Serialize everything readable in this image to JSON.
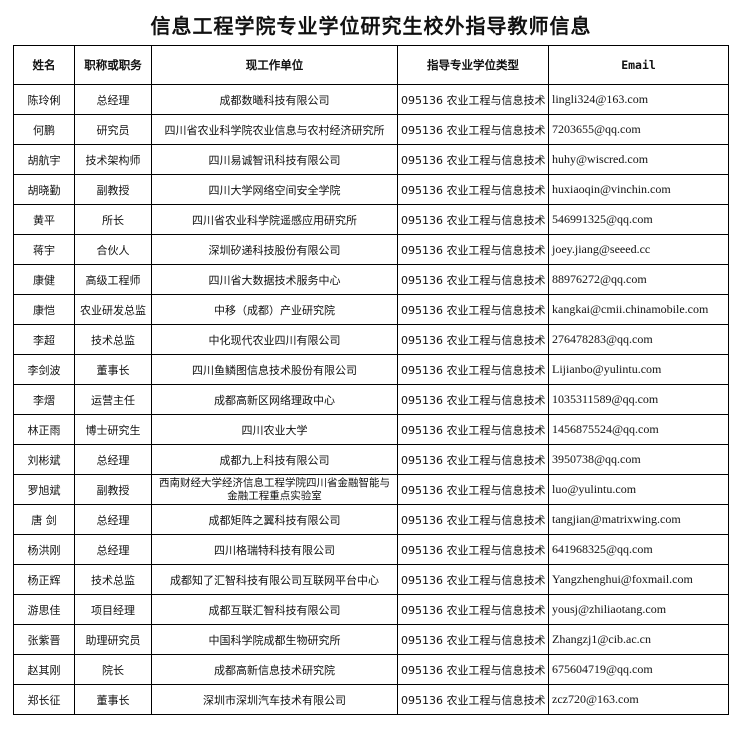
{
  "title": "信息工程学院专业学位研究生校外指导教师信息",
  "columns": [
    "姓名",
    "职称或职务",
    "现工作单位",
    "指导专业学位类型",
    "Email"
  ],
  "rows": [
    [
      "陈玲俐",
      "总经理",
      "成都数曦科技有限公司",
      "095136 农业工程与信息技术",
      "lingli324@163.com"
    ],
    [
      "何鹏",
      "研究员",
      "四川省农业科学院农业信息与农村经济研究所",
      "095136 农业工程与信息技术",
      "7203655@qq.com"
    ],
    [
      "胡航宇",
      "技术架构师",
      "四川易诚智讯科技有限公司",
      "095136 农业工程与信息技术",
      "huhy@wiscred.com"
    ],
    [
      "胡晓勤",
      "副教授",
      "四川大学网络空间安全学院",
      "095136 农业工程与信息技术",
      "huxiaoqin@vinchin.com"
    ],
    [
      "黄平",
      "所长",
      "四川省农业科学院遥感应用研究所",
      "095136 农业工程与信息技术",
      "546991325@qq.com"
    ],
    [
      "蒋宇",
      "合伙人",
      "深圳矽递科技股份有限公司",
      "095136 农业工程与信息技术",
      "joey.jiang@seeed.cc"
    ],
    [
      "康健",
      "高级工程师",
      "四川省大数据技术服务中心",
      "095136 农业工程与信息技术",
      "88976272@qq.com"
    ],
    [
      "康恺",
      "农业研发总监",
      "中移（成都）产业研究院",
      "095136 农业工程与信息技术",
      "kangkai@cmii.chinamobile.com"
    ],
    [
      "李超",
      "技术总监",
      "中化现代农业四川有限公司",
      "095136 农业工程与信息技术",
      "276478283@qq.com"
    ],
    [
      "李剑波",
      "董事长",
      "四川鱼鳞图信息技术股份有限公司",
      "095136 农业工程与信息技术",
      "Lijianbo@yulintu.com"
    ],
    [
      "李熠",
      "运营主任",
      "成都高新区网络理政中心",
      "095136 农业工程与信息技术",
      "1035311589@qq.com"
    ],
    [
      "林正雨",
      "博士研究生",
      "四川农业大学",
      "095136 农业工程与信息技术",
      "1456875524@qq.com"
    ],
    [
      "刘彬斌",
      "总经理",
      "成都九上科技有限公司",
      "095136 农业工程与信息技术",
      "3950738@qq.com"
    ],
    [
      "罗旭斌",
      "副教授",
      "西南财经大学经济信息工程学院四川省金融智能与金融工程重点实验室",
      "095136 农业工程与信息技术",
      "luo@yulintu.com"
    ],
    [
      "唐 剑",
      "总经理",
      "成都矩阵之翼科技有限公司",
      "095136 农业工程与信息技术",
      "tangjian@matrixwing.com"
    ],
    [
      "杨洪刚",
      "总经理",
      "四川格瑞特科技有限公司",
      "095136 农业工程与信息技术",
      "641968325@qq.com"
    ],
    [
      "杨正辉",
      "技术总监",
      "成都知了汇智科技有限公司互联网平台中心",
      "095136 农业工程与信息技术",
      "Yangzhenghui@foxmail.com"
    ],
    [
      "游思佳",
      "项目经理",
      "成都互联汇智科技有限公司",
      "095136 农业工程与信息技术",
      "yousj@zhiliaotang.com"
    ],
    [
      "张紫晋",
      "助理研究员",
      "中国科学院成都生物研究所",
      "095136 农业工程与信息技术",
      "Zhangzj1@cib.ac.cn"
    ],
    [
      "赵其刚",
      "院长",
      "成都高新信息技术研究院",
      "095136 农业工程与信息技术",
      "675604719@qq.com"
    ],
    [
      "郑长征",
      "董事长",
      "深圳市深圳汽车技术有限公司",
      "095136 农业工程与信息技术",
      "zcz720@163.com"
    ]
  ]
}
